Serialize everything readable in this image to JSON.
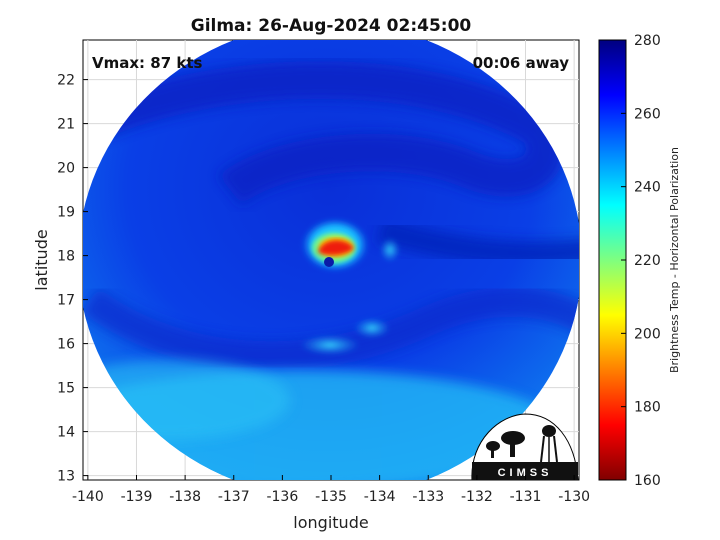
{
  "chart_data": {
    "type": "heatmap",
    "title": "Gilma: 26-Aug-2024 02:45:00",
    "xlabel": "longitude",
    "ylabel": "latitude",
    "xlim": [
      -140.1,
      -129.9
    ],
    "ylim": [
      12.9,
      22.9
    ],
    "xticks": [
      -140,
      -139,
      -138,
      -137,
      -136,
      -135,
      -134,
      -133,
      -132,
      -131,
      -130
    ],
    "yticks": [
      13,
      14,
      15,
      16,
      17,
      18,
      19,
      20,
      21,
      22
    ],
    "grid": true,
    "annotations": {
      "left": "Vmax: 87 kts",
      "right": "00:06 away"
    },
    "colorbar": {
      "label": "Brightness Temp - Horizontal Polarization",
      "ticks": [
        160,
        180,
        200,
        220,
        240,
        260,
        280
      ],
      "range": [
        160,
        280
      ],
      "colormap": "jet"
    },
    "storm_center": {
      "lon": -135.1,
      "lat": 18.0,
      "eyewall_min_temp": 178
    },
    "logo_text": "CIMSS"
  }
}
